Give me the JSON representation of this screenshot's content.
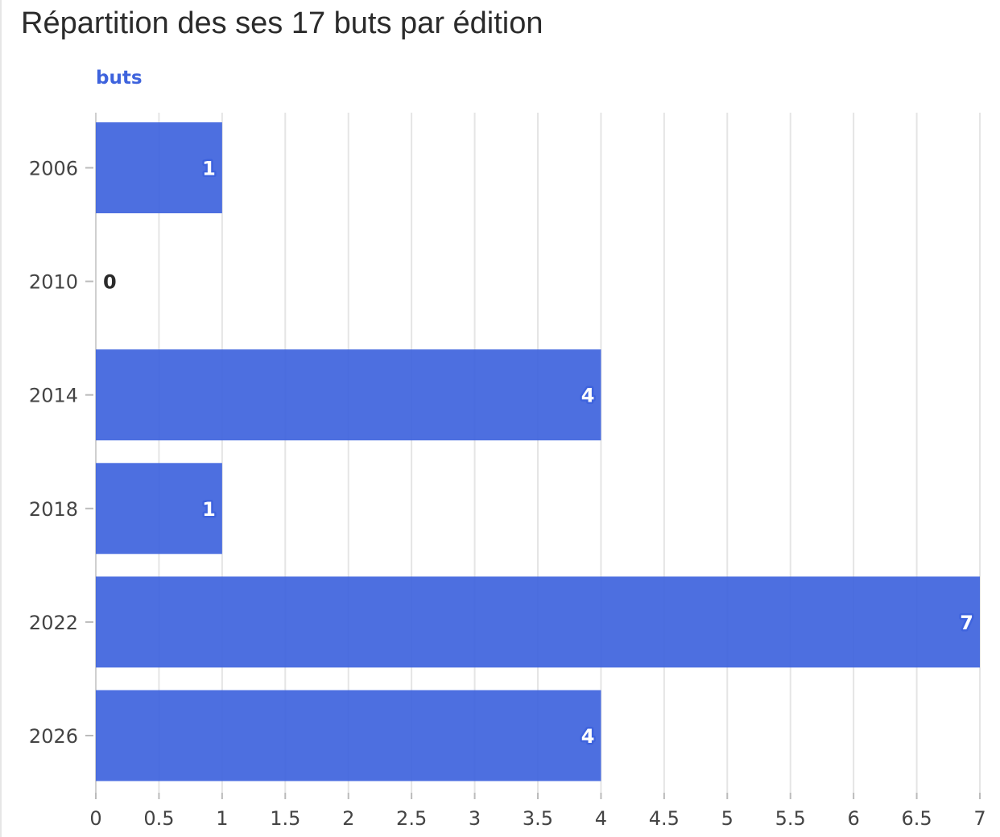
{
  "title": "Répartition des ses 17 buts par édition",
  "chart_data": {
    "type": "bar",
    "orientation": "horizontal",
    "title": "Répartition des ses 17 buts par édition",
    "categories": [
      "2006",
      "2010",
      "2014",
      "2018",
      "2022",
      "2026"
    ],
    "series": [
      {
        "name": "buts",
        "values": [
          1,
          0,
          4,
          1,
          7,
          4
        ]
      }
    ],
    "xlim": [
      0,
      7
    ],
    "x_ticks": [
      0,
      0.5,
      1,
      1.5,
      2,
      2.5,
      3,
      3.5,
      4,
      4.5,
      5,
      5.5,
      6,
      6.5,
      7
    ],
    "x_tick_labels": [
      "0",
      "0.5",
      "1",
      "1.5",
      "2",
      "2.5",
      "3",
      "3.5",
      "4",
      "4.5",
      "5",
      "5.5",
      "6",
      "6.5",
      "7"
    ],
    "grid": "vertical",
    "bar_color": "#3e63dd",
    "label_color_inside": "#ffffff",
    "label_color_outside": "#2b2b2b"
  }
}
